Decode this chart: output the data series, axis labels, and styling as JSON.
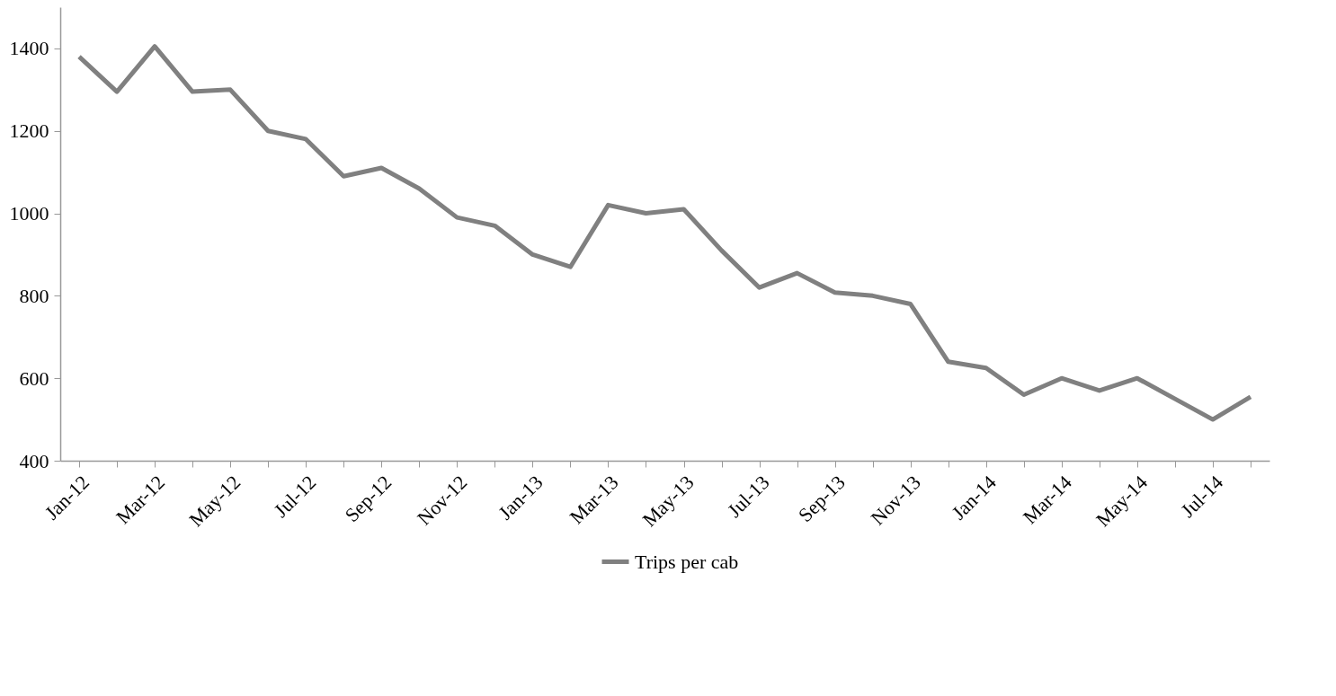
{
  "chart_data": {
    "type": "line",
    "categories": [
      "Jan-12",
      null,
      "Mar-12",
      null,
      "May-12",
      null,
      "Jul-12",
      null,
      "Sep-12",
      null,
      "Nov-12",
      null,
      "Jan-13",
      null,
      "Mar-13",
      null,
      "May-13",
      null,
      "Jul-13",
      null,
      "Sep-13",
      null,
      "Nov-13",
      null,
      "Jan-14",
      null,
      "Mar-14",
      null,
      "May-14",
      null,
      "Jul-14",
      null
    ],
    "series": [
      {
        "name": "Trips per cab",
        "color": "#808080",
        "values": [
          1380,
          1295,
          1405,
          1295,
          1300,
          1200,
          1180,
          1090,
          1110,
          1060,
          990,
          970,
          900,
          870,
          1020,
          1000,
          1010,
          910,
          820,
          855,
          808,
          800,
          780,
          640,
          625,
          560,
          600,
          570,
          600,
          550,
          500,
          555
        ]
      }
    ],
    "ylim": [
      400,
      1500
    ],
    "yticks": [
      400,
      600,
      800,
      1000,
      1200,
      1400
    ],
    "grid": false,
    "legend": "bottom",
    "marker": "none",
    "line_style": "solid"
  }
}
